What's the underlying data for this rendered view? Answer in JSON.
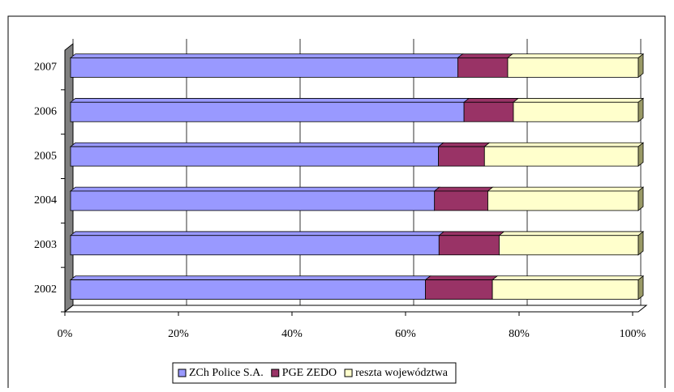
{
  "chart_data": {
    "type": "stacked-bar-horizontal",
    "categories": [
      "2002",
      "2003",
      "2004",
      "2005",
      "2006",
      "2007"
    ],
    "series": [
      {
        "name": "ZCh Police S.A.",
        "color": "#9999ff",
        "values": [
          62.5,
          64.9,
          64.1,
          64.8,
          69.3,
          68.2
        ]
      },
      {
        "name": "PGE ZEDO",
        "color": "#993366",
        "values": [
          11.8,
          10.6,
          9.4,
          8.1,
          8.7,
          8.8
        ]
      },
      {
        "name": "reszta województwa",
        "color": "#ffffcc",
        "values": [
          25.7,
          24.5,
          26.5,
          27.1,
          22.0,
          23.0
        ]
      }
    ],
    "xlim": [
      0,
      100
    ],
    "xticks": [
      {
        "value": 0,
        "label": "0%"
      },
      {
        "value": 20,
        "label": "20%"
      },
      {
        "value": 40,
        "label": "40%"
      },
      {
        "value": 60,
        "label": "60%"
      },
      {
        "value": 80,
        "label": "80%"
      },
      {
        "value": 100,
        "label": "100%"
      }
    ],
    "grid": true,
    "legend": "bottom"
  }
}
